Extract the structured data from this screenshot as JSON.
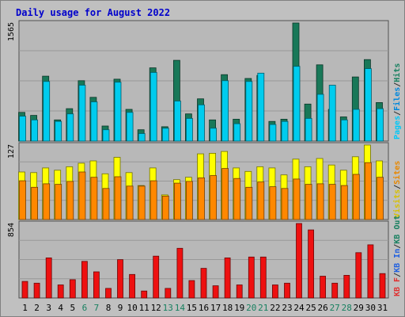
{
  "chart_data": {
    "type": "bar",
    "title": "Daily usage for August 2022",
    "categories": [
      "1",
      "2",
      "3",
      "4",
      "5",
      "6",
      "7",
      "8",
      "9",
      "10",
      "11",
      "12",
      "13",
      "14",
      "15",
      "16",
      "17",
      "18",
      "19",
      "20",
      "21",
      "22",
      "23",
      "24",
      "25",
      "26",
      "27",
      "28",
      "29",
      "30",
      "31"
    ],
    "weekend_days": [
      "6",
      "7",
      "13",
      "14",
      "20",
      "21",
      "27",
      "28"
    ],
    "panels": [
      {
        "id": "pages-files-hits",
        "ymax_label": "1565",
        "ymax": 1565,
        "right_labels": [
          {
            "text": "Pages",
            "color": "#00c8f8"
          },
          {
            "text": "/",
            "color": "#303030"
          },
          {
            "text": "Files",
            "color": "#0088dd"
          },
          {
            "text": "/",
            "color": "#303030"
          },
          {
            "text": "Hits",
            "color": "#188060"
          }
        ],
        "series": [
          {
            "name": "Hits",
            "color": "#187858",
            "values": [
              380,
              340,
              860,
              280,
              430,
              800,
              580,
              200,
              820,
              420,
              150,
              970,
              190,
              1070,
              360,
              560,
              280,
              880,
              290,
              830,
              870,
              260,
              290,
              1565,
              490,
              1010,
              420,
              320,
              850,
              1080,
              510
            ]
          },
          {
            "name": "Pages",
            "color": "#00ccee",
            "values": [
              330,
              280,
              790,
              260,
              360,
              740,
              520,
              150,
              780,
              380,
              100,
              910,
              170,
              530,
              300,
              480,
              170,
              800,
              230,
              790,
              900,
              220,
              260,
              990,
              300,
              620,
              740,
              280,
              420,
              960,
              430
            ]
          }
        ]
      },
      {
        "id": "visits-sites",
        "ymax_label": "127",
        "ymax": 127,
        "right_labels": [
          {
            "text": "Visits",
            "color": "#d8c000"
          },
          {
            "text": "/",
            "color": "#303030"
          },
          {
            "text": "Sites",
            "color": "#e88800"
          }
        ],
        "series": [
          {
            "name": "Visits",
            "color": "#ffff00",
            "values": [
              81,
              80,
              88,
              84,
              90,
              96,
              100,
              78,
              106,
              80,
              58,
              88,
              42,
              68,
              72,
              112,
              113,
              116,
              88,
              82,
              90,
              88,
              76,
              103,
              90,
              104,
              93,
              84,
              107,
              127,
              100
            ]
          },
          {
            "name": "Sites",
            "color": "#ff8800",
            "values": [
              66,
              55,
              61,
              60,
              65,
              81,
              72,
              53,
              73,
              57,
              57,
              66,
              40,
              62,
              65,
              71,
              75,
              87,
              70,
              55,
              64,
              56,
              53,
              69,
              60,
              61,
              60,
              58,
              77,
              97,
              72
            ]
          }
        ]
      },
      {
        "id": "kb",
        "ymax_label": "854",
        "ymax": 854,
        "right_labels": [
          {
            "text": "KB F",
            "color": "#e03030"
          },
          {
            "text": "/",
            "color": "#303030"
          },
          {
            "text": "KB In",
            "color": "#2060e0"
          },
          {
            "text": "/",
            "color": "#303030"
          },
          {
            "text": "KB Out",
            "color": "#188060"
          }
        ],
        "series": [
          {
            "name": "KB F",
            "color": "#ee1010",
            "values": [
              190,
              170,
              460,
              150,
              210,
              420,
              300,
              110,
              440,
              270,
              80,
              480,
              110,
              570,
              200,
              340,
              140,
              460,
              150,
              470,
              470,
              150,
              170,
              854,
              780,
              250,
              170,
              260,
              520,
              610,
              280
            ]
          }
        ]
      }
    ],
    "colors": {
      "background": "#c0c0c0",
      "plot_background": "#b8b8b8",
      "frame": "#505050",
      "title": "#0000cc",
      "weekday_label": "#000000",
      "weekend_label": "#188060"
    }
  }
}
